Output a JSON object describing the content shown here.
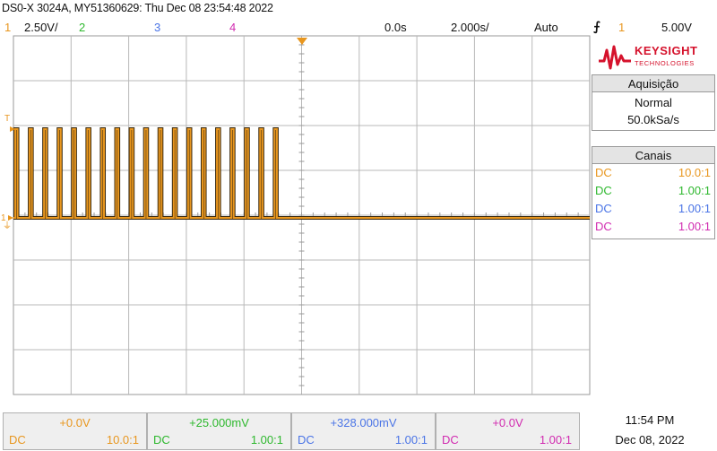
{
  "window": {
    "title": "DS0-X 3024A, MY51360629: Thu Dec 08 23:54:48 2022"
  },
  "header": {
    "ch1_num": "1",
    "ch1_scale": "2.50V/",
    "ch2_num": "2",
    "ch3_num": "3",
    "ch4_num": "4",
    "time_offset": "0.0s",
    "time_scale": "2.000s/",
    "trigger_mode": "Auto",
    "trigger_edge_icon": "rising-edge-trigger-icon",
    "trigger_source": "1",
    "trigger_level": "5.00V"
  },
  "logo": {
    "brand": "KEYSIGHT",
    "sub": "TECHNOLOGIES"
  },
  "acquisition": {
    "title": "Aquisição",
    "mode": "Normal",
    "rate": "50.0kSa/s"
  },
  "channels_panel": {
    "title": "Canais",
    "rows": [
      {
        "coupling": "DC",
        "probe": "10.0:1"
      },
      {
        "coupling": "DC",
        "probe": "1.00:1"
      },
      {
        "coupling": "DC",
        "probe": "1.00:1"
      },
      {
        "coupling": "DC",
        "probe": "1.00:1"
      }
    ]
  },
  "bottom_channels": [
    {
      "offset": "+0.0V",
      "coupling": "DC",
      "probe": "10.0:1"
    },
    {
      "offset": "+25.000mV",
      "coupling": "DC",
      "probe": "1.00:1"
    },
    {
      "offset": "+328.000mV",
      "coupling": "DC",
      "probe": "1.00:1"
    },
    {
      "offset": "+0.0V",
      "coupling": "DC",
      "probe": "1.00:1"
    }
  ],
  "clock": {
    "time": "11:54 PM",
    "date": "Dec 08, 2022"
  },
  "markers": {
    "trigger_level_label": "T",
    "ch1_ground_label": "1"
  },
  "colors": {
    "ch1": "#e8961e",
    "ch2": "#2eb82e",
    "ch3": "#4a74e6",
    "ch4": "#d12bb0",
    "grid": "#b8b8b8",
    "trace_dark": "#3a2a10",
    "keysight_red": "#d5122c"
  },
  "waveform": {
    "channel": "1",
    "description_values": {
      "low_level_divisions_from_top": 4,
      "high_level_divisions_from_top": 2,
      "pulse_count_visible": 19,
      "pulse_period_s": 0.5,
      "pulse_width_s": 0.08
    }
  }
}
